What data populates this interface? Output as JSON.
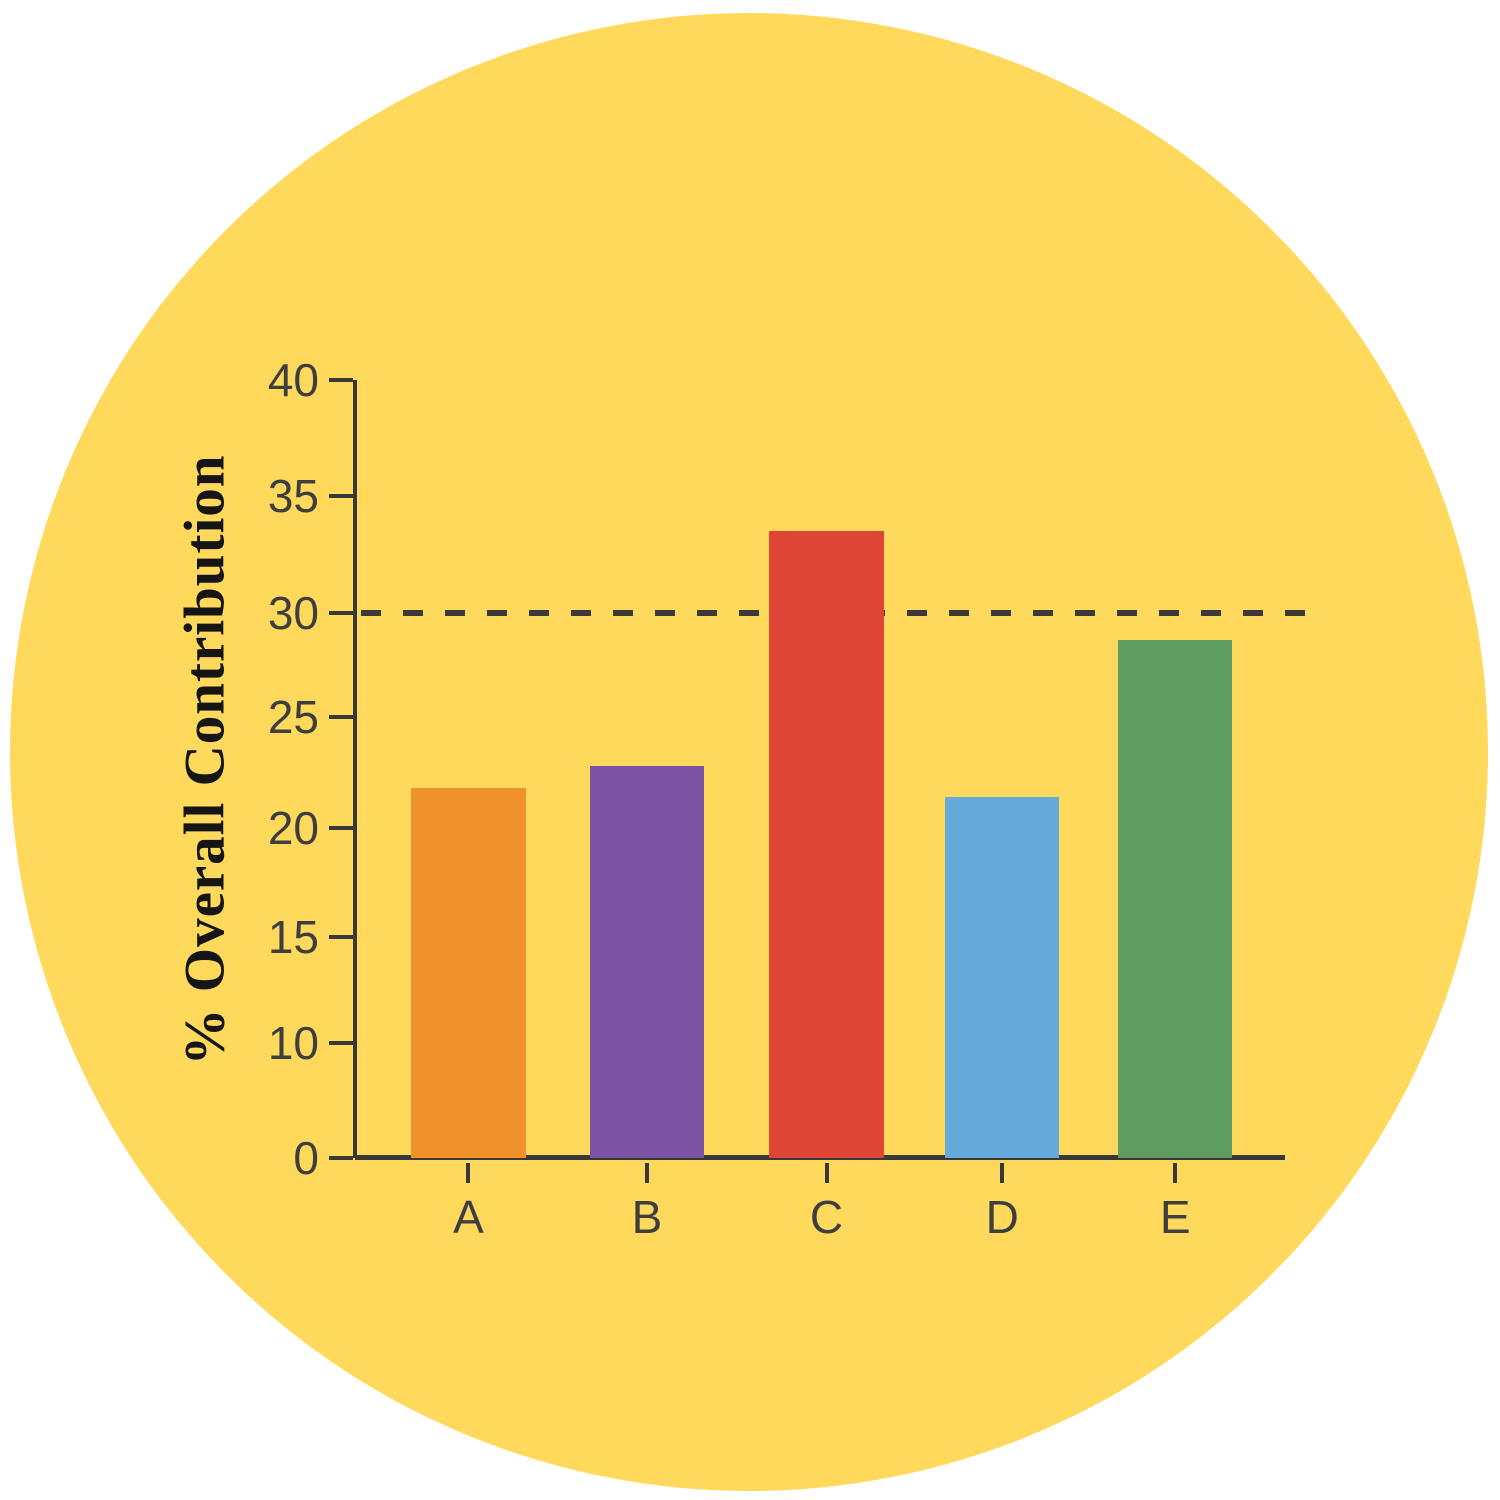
{
  "chart_data": {
    "type": "bar",
    "title": "",
    "categories": [
      "A",
      "B",
      "C",
      "D",
      "E"
    ],
    "values": [
      21.8,
      22.8,
      33.5,
      21.4,
      28.7
    ],
    "bar_colors": [
      "#F0922B",
      "#7C52A5",
      "#DF4536",
      "#66AADC",
      "#5F9C62"
    ],
    "xlabel": "",
    "ylabel": "% Overall Contribution",
    "ylim": [
      0,
      40
    ],
    "yticks": [
      40,
      35,
      30,
      25,
      20,
      15,
      10,
      0
    ],
    "reference_line": {
      "value": 30,
      "style": "dashed"
    },
    "grid": false,
    "legend": false
  },
  "style": {
    "page_background": "#FFFFFF",
    "circle_background": "#FFD95C",
    "axis_color": "#383838",
    "tick_label_color": "#3E3E3E",
    "ylabel_color": "#151515",
    "reference_line_color": "#3A3A3A"
  }
}
